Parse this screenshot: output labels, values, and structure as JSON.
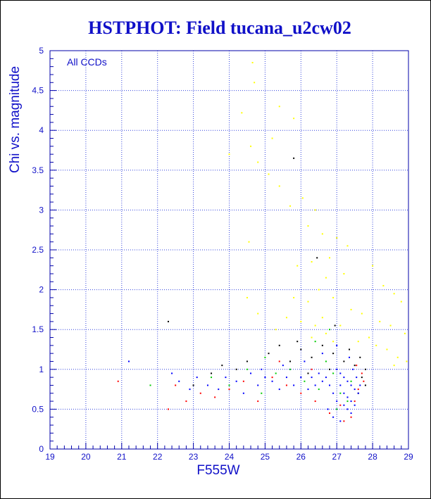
{
  "chart_data": {
    "type": "scatter",
    "title": "HSTPHOT: Field tucana_u2cw02",
    "xlabel": "F555W",
    "ylabel": "Chi vs. magnitude",
    "annotation": "All CCDs",
    "xlim": [
      19,
      29
    ],
    "ylim": [
      0,
      5
    ],
    "x_ticks": [
      19,
      20,
      21,
      22,
      23,
      24,
      25,
      26,
      27,
      28,
      29
    ],
    "y_ticks": [
      0,
      0.5,
      1,
      1.5,
      2,
      2.5,
      3,
      3.5,
      4,
      4.5,
      5
    ],
    "y_tick_labels": [
      "0",
      "0.5",
      "1",
      "1.5",
      "2",
      "2.5",
      "3",
      "3.5",
      "4",
      "4.5",
      "5"
    ],
    "grid": true,
    "colors": {
      "text": "#1010c8",
      "axis": "#0000aa",
      "grid": "#3344dd",
      "background": "#ffffff"
    },
    "series": [
      {
        "color": "#ffff00",
        "points": [
          [
            24.65,
            4.85
          ],
          [
            24.7,
            4.6
          ],
          [
            25.4,
            4.3
          ],
          [
            24.35,
            4.22
          ],
          [
            25.8,
            4.15
          ],
          [
            25.2,
            3.9
          ],
          [
            24.6,
            3.8
          ],
          [
            24.0,
            3.7
          ],
          [
            24.8,
            3.6
          ],
          [
            25.1,
            3.45
          ],
          [
            25.4,
            3.3
          ],
          [
            25.7,
            3.05
          ],
          [
            26.05,
            3.15
          ],
          [
            26.4,
            3.0
          ],
          [
            26.2,
            2.8
          ],
          [
            26.6,
            2.7
          ],
          [
            27.0,
            2.65
          ],
          [
            27.3,
            2.55
          ],
          [
            26.8,
            2.4
          ],
          [
            26.3,
            2.35
          ],
          [
            25.9,
            2.3
          ],
          [
            24.55,
            2.6
          ],
          [
            27.2,
            2.2
          ],
          [
            26.7,
            2.15
          ],
          [
            28.0,
            2.3
          ],
          [
            28.3,
            2.05
          ],
          [
            28.6,
            1.95
          ],
          [
            28.8,
            1.85
          ],
          [
            26.5,
            2.0
          ],
          [
            26.9,
            1.9
          ],
          [
            26.2,
            1.85
          ],
          [
            25.8,
            1.9
          ],
          [
            24.8,
            1.7
          ],
          [
            24.5,
            1.9
          ],
          [
            27.4,
            1.75
          ],
          [
            27.7,
            1.7
          ],
          [
            28.2,
            1.6
          ],
          [
            28.5,
            1.55
          ],
          [
            28.9,
            1.45
          ],
          [
            26.6,
            1.65
          ],
          [
            26.4,
            1.55
          ],
          [
            26.0,
            1.6
          ],
          [
            25.6,
            1.65
          ],
          [
            27.9,
            1.4
          ],
          [
            28.1,
            1.3
          ],
          [
            28.4,
            1.25
          ],
          [
            28.7,
            1.15
          ],
          [
            26.7,
            1.45
          ],
          [
            26.9,
            1.35
          ],
          [
            26.3,
            1.4
          ],
          [
            27.1,
            1.55
          ],
          [
            25.3,
            1.5
          ],
          [
            27.6,
            1.35
          ],
          [
            28.6,
            1.05
          ],
          [
            28.95,
            1.1
          ]
        ]
      },
      {
        "color": "#000000",
        "points": [
          [
            25.8,
            3.65
          ],
          [
            26.45,
            2.4
          ],
          [
            26.95,
            1.55
          ],
          [
            25.1,
            1.2
          ],
          [
            25.4,
            1.3
          ],
          [
            25.7,
            1.1
          ],
          [
            26.0,
            1.25
          ],
          [
            26.3,
            1.15
          ],
          [
            26.6,
            1.3
          ],
          [
            26.9,
            1.2
          ],
          [
            27.2,
            1.1
          ],
          [
            27.5,
            1.05
          ],
          [
            27.7,
            0.9
          ],
          [
            27.8,
            0.8
          ],
          [
            27.6,
            0.7
          ],
          [
            24.5,
            1.1
          ],
          [
            24.2,
            1.0
          ],
          [
            23.8,
            1.05
          ],
          [
            23.5,
            0.95
          ],
          [
            26.2,
            0.95
          ],
          [
            26.8,
            1.0
          ],
          [
            27.35,
            1.25
          ],
          [
            27.65,
            1.15
          ],
          [
            25.9,
            1.35
          ],
          [
            22.3,
            1.6
          ],
          [
            23.0,
            0.8
          ],
          [
            27.8,
            1.0
          ]
        ]
      },
      {
        "color": "#ff0000",
        "points": [
          [
            27.7,
            0.95
          ],
          [
            27.75,
            0.85
          ],
          [
            27.6,
            0.75
          ],
          [
            27.5,
            0.6
          ],
          [
            27.4,
            0.4
          ],
          [
            27.2,
            0.35
          ],
          [
            26.8,
            0.45
          ],
          [
            26.4,
            0.6
          ],
          [
            26.0,
            0.7
          ],
          [
            25.6,
            0.8
          ],
          [
            25.2,
            0.9
          ],
          [
            24.8,
            0.6
          ],
          [
            24.4,
            0.85
          ],
          [
            24.0,
            0.75
          ],
          [
            23.6,
            0.65
          ],
          [
            23.2,
            0.7
          ],
          [
            22.8,
            0.6
          ],
          [
            22.5,
            0.8
          ],
          [
            22.3,
            0.5
          ],
          [
            20.9,
            0.85
          ],
          [
            25.4,
            1.1
          ],
          [
            26.3,
            1.0
          ],
          [
            27.1,
            0.55
          ],
          [
            27.55,
            1.05
          ]
        ]
      },
      {
        "color": "#00cc00",
        "points": [
          [
            27.4,
            0.85
          ],
          [
            27.3,
            0.6
          ],
          [
            27.1,
            0.7
          ],
          [
            26.9,
            0.95
          ],
          [
            26.7,
            1.1
          ],
          [
            26.5,
            0.75
          ],
          [
            26.1,
            0.85
          ],
          [
            25.7,
            1.0
          ],
          [
            25.3,
            0.95
          ],
          [
            24.9,
            0.7
          ],
          [
            24.5,
            1.0
          ],
          [
            24.0,
            0.8
          ],
          [
            23.5,
            0.9
          ],
          [
            21.8,
            0.8
          ],
          [
            26.8,
            1.5
          ],
          [
            26.4,
            1.35
          ],
          [
            27.0,
            0.5
          ],
          [
            25.0,
            1.15
          ]
        ]
      },
      {
        "color": "#0000ff",
        "points": [
          [
            27.0,
            1.0
          ],
          [
            27.1,
            0.95
          ],
          [
            27.2,
            0.9
          ],
          [
            27.3,
            0.85
          ],
          [
            27.4,
            0.8
          ],
          [
            27.5,
            0.75
          ],
          [
            27.6,
            0.7
          ],
          [
            27.1,
            0.8
          ],
          [
            27.2,
            0.7
          ],
          [
            27.3,
            0.65
          ],
          [
            27.4,
            0.6
          ],
          [
            27.5,
            0.55
          ],
          [
            27.2,
            0.55
          ],
          [
            27.3,
            0.5
          ],
          [
            27.4,
            0.45
          ],
          [
            27.0,
            0.6
          ],
          [
            26.9,
            0.7
          ],
          [
            26.8,
            0.8
          ],
          [
            26.7,
            0.9
          ],
          [
            26.6,
            0.85
          ],
          [
            26.5,
            0.95
          ],
          [
            26.4,
            0.8
          ],
          [
            26.3,
            0.9
          ],
          [
            26.2,
            0.75
          ],
          [
            26.0,
            0.9
          ],
          [
            25.8,
            0.8
          ],
          [
            25.6,
            0.9
          ],
          [
            25.4,
            0.75
          ],
          [
            25.2,
            0.85
          ],
          [
            25.0,
            0.9
          ],
          [
            24.8,
            0.8
          ],
          [
            24.6,
            0.95
          ],
          [
            24.4,
            0.7
          ],
          [
            24.2,
            0.85
          ],
          [
            23.9,
            0.9
          ],
          [
            23.7,
            0.75
          ],
          [
            23.4,
            0.8
          ],
          [
            23.1,
            0.9
          ],
          [
            22.9,
            0.75
          ],
          [
            22.6,
            0.85
          ],
          [
            22.4,
            0.95
          ],
          [
            21.2,
            1.1
          ],
          [
            26.6,
            1.2
          ],
          [
            27.0,
            1.3
          ],
          [
            27.45,
            1.0
          ],
          [
            27.55,
            0.9
          ],
          [
            27.65,
            0.8
          ],
          [
            26.9,
            0.4
          ],
          [
            27.1,
            0.35
          ],
          [
            25.5,
            1.05
          ],
          [
            26.1,
            1.1
          ],
          [
            24.9,
            1.0
          ],
          [
            27.35,
            1.15
          ],
          [
            26.75,
            0.5
          ]
        ]
      }
    ]
  }
}
